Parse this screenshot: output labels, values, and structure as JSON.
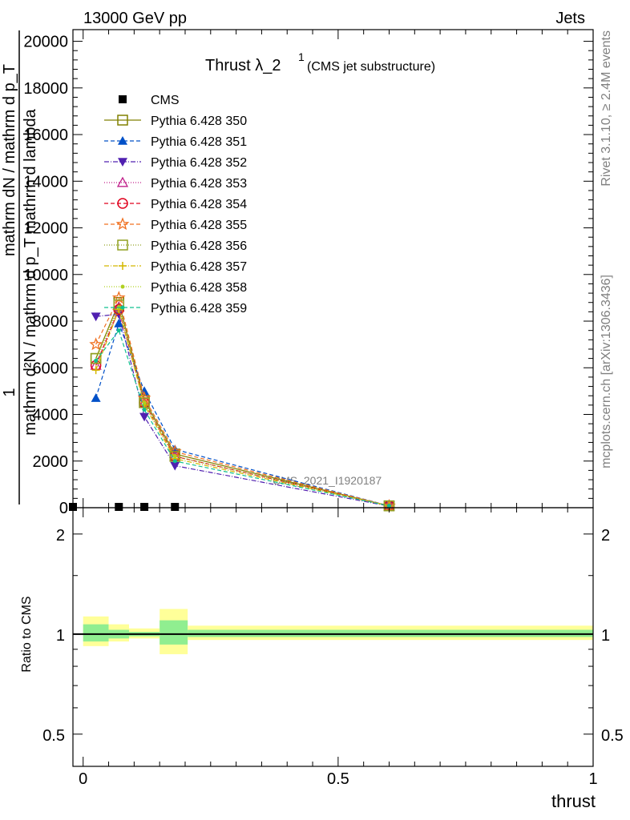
{
  "header": {
    "left": "13000 GeV pp",
    "right": "Jets",
    "rivet_side": "Rivet 3.1.10, ≥ 2.4M events",
    "mcplots_side": "mcplots.cern.ch [arXiv:1306.3436]",
    "watermark": "CMS_2021_I1920187"
  },
  "chart_data": [
    {
      "type": "line",
      "title_main": "Thrust λ_2",
      "title_sup": "1",
      "title_sub": "(CMS jet substructure)",
      "ylabel_num": "1",
      "ylabel_den": "mathrm d²N / mathrm d p_T mathrm d lambda",
      "ylabel_extra": "mathrm dN / mathrm d p_T",
      "ylim": [
        0,
        20500
      ],
      "yticks": [
        0,
        2000,
        4000,
        6000,
        8000,
        10000,
        12000,
        14000,
        16000,
        18000,
        20000
      ],
      "xlim": [
        -0.02,
        1.0
      ],
      "series": [
        {
          "name": "CMS",
          "color": "#000000",
          "marker": "square-filled",
          "dash": "none",
          "x": [
            -0.02,
            0.07,
            0.12,
            0.18
          ],
          "y": [
            0,
            0,
            0,
            0
          ]
        },
        {
          "name": "Pythia 6.428 350",
          "color": "#808000",
          "marker": "square-open",
          "dash": "solid",
          "x": [
            0.025,
            0.07,
            0.12,
            0.18,
            0.6
          ],
          "y": [
            6400,
            8800,
            4600,
            2300,
            80
          ]
        },
        {
          "name": "Pythia 6.428 351",
          "color": "#0050c8",
          "marker": "triangle-up-filled",
          "dash": "5,3",
          "x": [
            0.025,
            0.07,
            0.12,
            0.18,
            0.6
          ],
          "y": [
            4700,
            7900,
            5000,
            2500,
            80
          ]
        },
        {
          "name": "Pythia 6.428 352",
          "color": "#5020b0",
          "marker": "triangle-down-filled",
          "dash": "6,2,1,2",
          "x": [
            0.025,
            0.07,
            0.12,
            0.18,
            0.6
          ],
          "y": [
            8200,
            8300,
            3900,
            1800,
            70
          ]
        },
        {
          "name": "Pythia 6.428 353",
          "color": "#c0208a",
          "marker": "triangle-up-open",
          "dash": "1,2",
          "x": [
            0.025,
            0.07,
            0.12,
            0.18,
            0.6
          ],
          "y": [
            6100,
            8600,
            4500,
            2200,
            80
          ]
        },
        {
          "name": "Pythia 6.428 354",
          "color": "#e0001c",
          "marker": "circle-open",
          "dash": "5,3",
          "x": [
            0.025,
            0.07,
            0.12,
            0.18,
            0.6
          ],
          "y": [
            6100,
            8500,
            4500,
            2200,
            80
          ]
        },
        {
          "name": "Pythia 6.428 355",
          "color": "#f07020",
          "marker": "star-open",
          "dash": "5,3",
          "x": [
            0.025,
            0.07,
            0.12,
            0.18,
            0.6
          ],
          "y": [
            7000,
            9000,
            4700,
            2400,
            80
          ]
        },
        {
          "name": "Pythia 6.428 356",
          "color": "#90a020",
          "marker": "square-open",
          "dash": "1,2",
          "x": [
            0.025,
            0.07,
            0.12,
            0.18,
            0.6
          ],
          "y": [
            6400,
            8700,
            4500,
            2200,
            80
          ]
        },
        {
          "name": "Pythia 6.428 357",
          "color": "#d4b800",
          "marker": "plus",
          "dash": "6,2,1,2",
          "x": [
            0.025,
            0.07,
            0.12,
            0.18,
            0.6
          ],
          "y": [
            5900,
            8500,
            4400,
            2100,
            80
          ]
        },
        {
          "name": "Pythia 6.428 358",
          "color": "#b0d020",
          "marker": "dot",
          "dash": "1,2",
          "x": [
            0.025,
            0.07,
            0.12,
            0.18,
            0.6
          ],
          "y": [
            6300,
            8600,
            4500,
            2200,
            80
          ]
        },
        {
          "name": "Pythia 6.428 359",
          "color": "#10c090",
          "marker": "dot",
          "dash": "5,3",
          "x": [
            0.025,
            0.07,
            0.12,
            0.18,
            0.6
          ],
          "y": [
            6300,
            7600,
            4200,
            2000,
            80
          ]
        }
      ]
    },
    {
      "type": "area",
      "ylabel": "Ratio to CMS",
      "xlabel": "thrust",
      "log_y": true,
      "ylim": [
        0.4,
        2.4
      ],
      "yticks": [
        0.5,
        1,
        2
      ],
      "ytick_labels": [
        "0.5",
        "1",
        "2"
      ],
      "xlim": [
        -0.02,
        1.0
      ],
      "xticks": [
        0,
        0.5,
        1
      ],
      "xtick_labels": [
        "0",
        "0.5",
        "1"
      ],
      "bands": [
        {
          "x0": 0.0,
          "x1": 0.05,
          "yellow": [
            0.92,
            1.13
          ],
          "green": [
            0.95,
            1.07
          ]
        },
        {
          "x0": 0.05,
          "x1": 0.09,
          "yellow": [
            0.95,
            1.07
          ],
          "green": [
            0.97,
            1.03
          ]
        },
        {
          "x0": 0.09,
          "x1": 0.15,
          "yellow": [
            0.97,
            1.04
          ],
          "green": [
            0.985,
            1.015
          ]
        },
        {
          "x0": 0.15,
          "x1": 0.205,
          "yellow": [
            0.87,
            1.19
          ],
          "green": [
            0.93,
            1.1
          ]
        },
        {
          "x0": 0.205,
          "x1": 1.0,
          "yellow": [
            0.96,
            1.06
          ],
          "green": [
            0.98,
            1.03
          ]
        }
      ],
      "reference": 1
    }
  ]
}
